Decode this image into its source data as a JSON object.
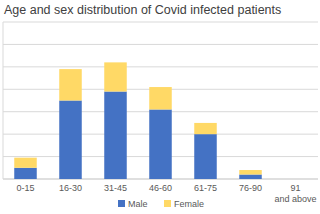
{
  "chart_data": {
    "type": "bar",
    "title": "Age and sex distribution of Covid infected patients",
    "categories": [
      "0-15",
      "16-30",
      "31-45",
      "46-60",
      "61-75",
      "76-90",
      "91 and above"
    ],
    "series": [
      {
        "name": "Male",
        "color": "#4472c4",
        "values": [
          0.5,
          3.5,
          3.9,
          3.1,
          2.0,
          0.2,
          0
        ]
      },
      {
        "name": "Female",
        "color": "#ffd966",
        "values": [
          0.45,
          1.4,
          1.3,
          1.0,
          0.5,
          0.2,
          0
        ]
      }
    ],
    "ylim": [
      0,
      7
    ],
    "yticks": [
      0,
      1,
      2,
      3,
      4,
      5,
      6,
      7
    ],
    "stacked": true,
    "grid": true,
    "legend": "bottom",
    "tick_labels": "x"
  }
}
